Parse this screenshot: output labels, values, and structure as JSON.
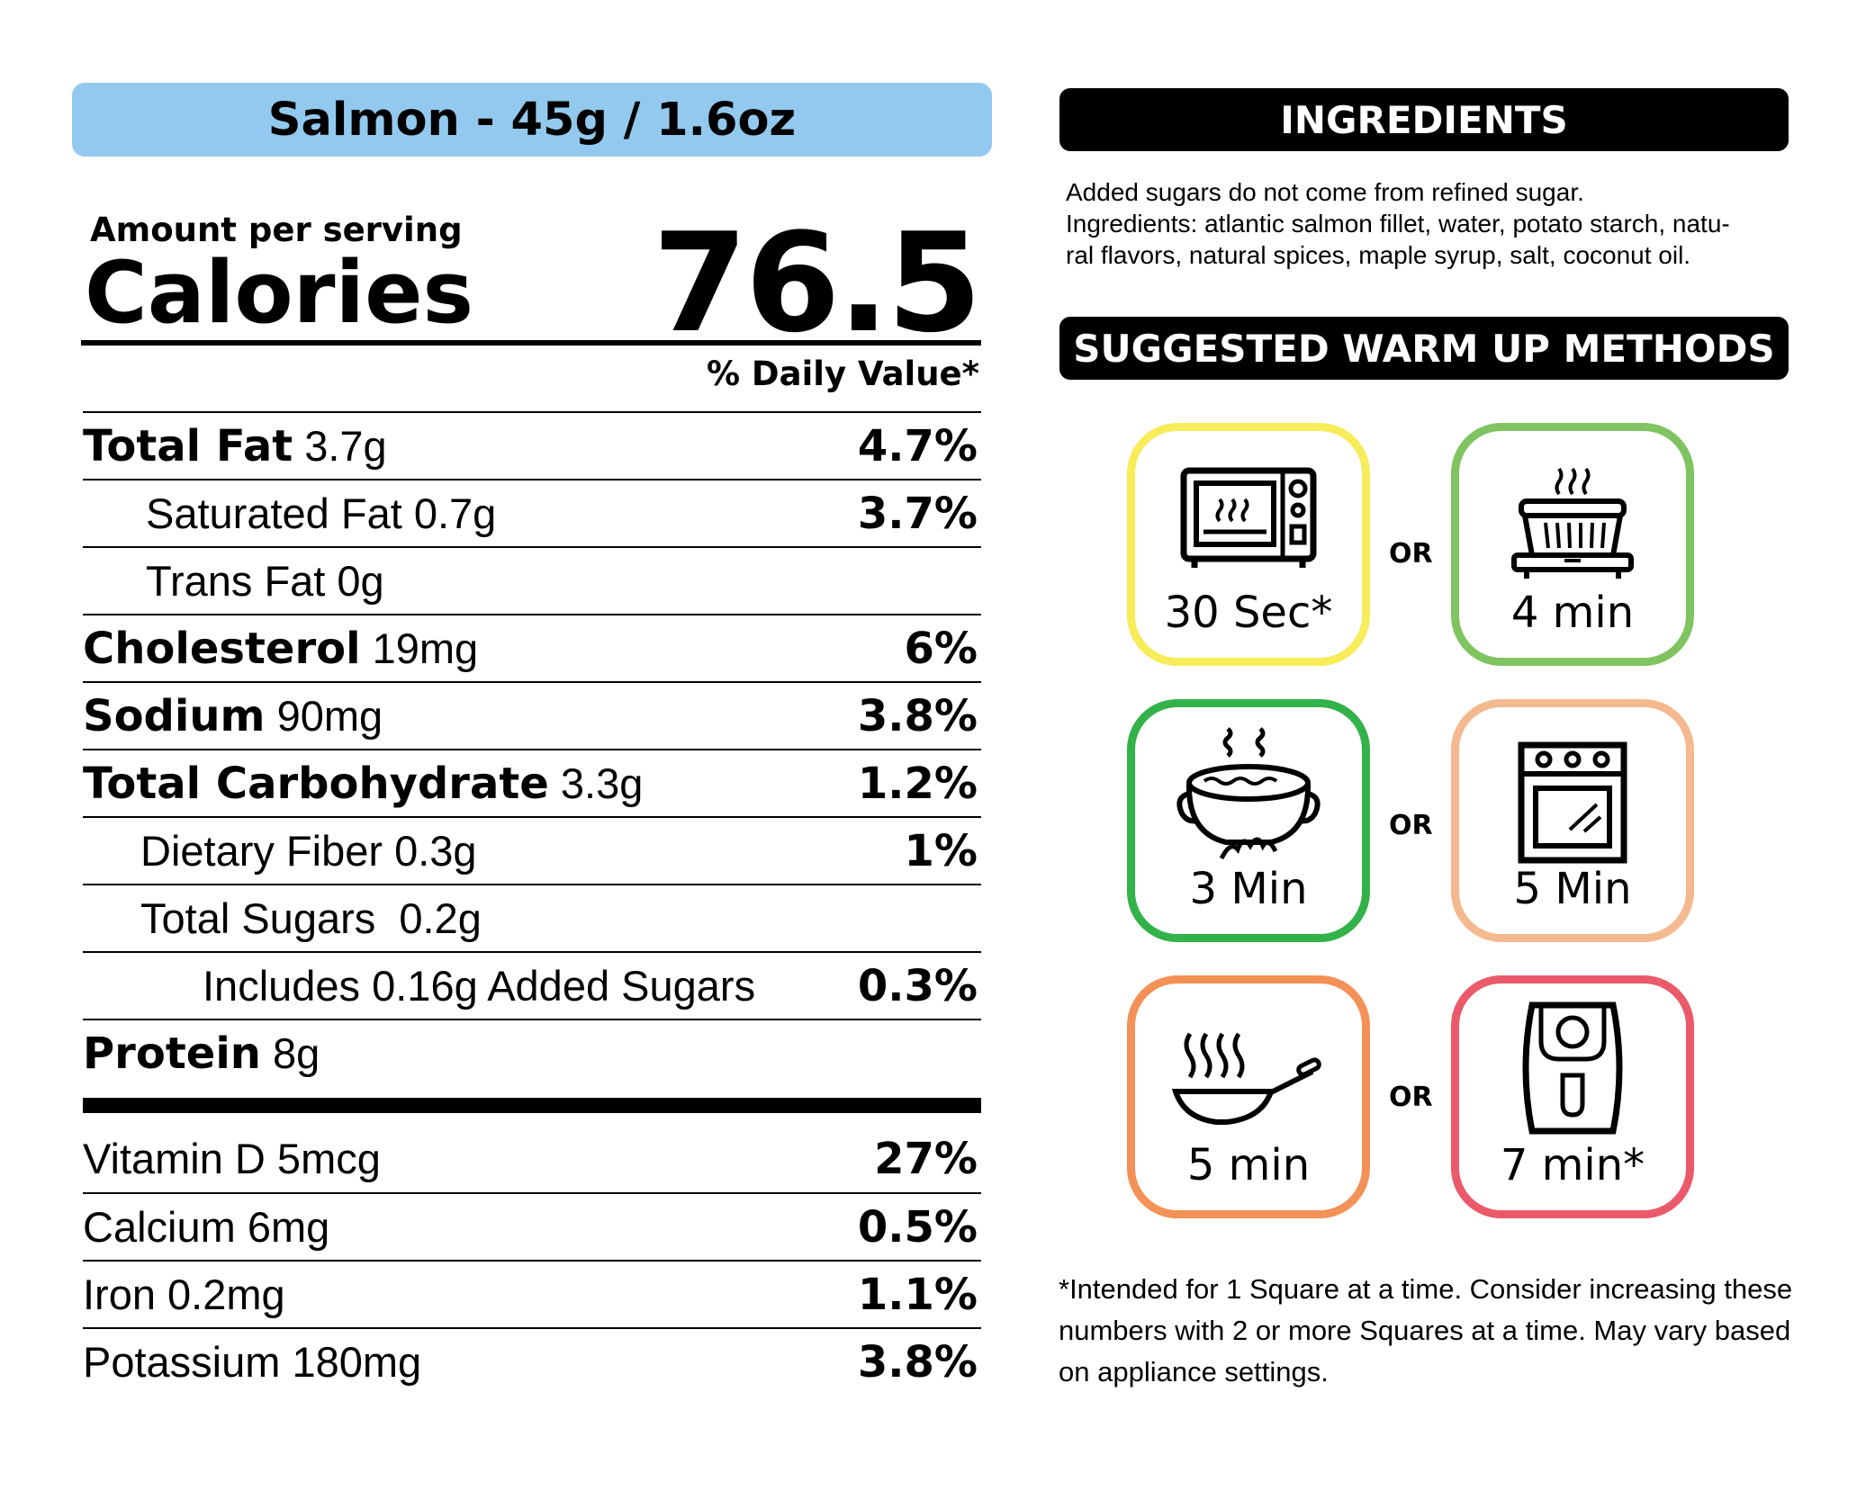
{
  "product": {
    "title": "Salmon - 45g / 1.6oz"
  },
  "calories": {
    "amount_label": "Amount per serving",
    "label": "Calories",
    "value": "76.5"
  },
  "daily_value_header": "% Daily Value*",
  "nutrients": [
    {
      "name": "Total Fat",
      "amount": "3.7g",
      "dv": "4.7%"
    },
    {
      "name": "Saturated Fat 0.7g",
      "amount": "",
      "dv": "3.7%"
    },
    {
      "name": "Trans Fat 0g",
      "amount": "",
      "dv": ""
    },
    {
      "name": "Cholesterol",
      "amount": "19mg",
      "dv": "6%"
    },
    {
      "name": "Sodium",
      "amount": "90mg",
      "dv": "3.8%"
    },
    {
      "name": "Total Carbohydrate",
      "amount": "3.3g",
      "dv": "1.2%"
    },
    {
      "name": "Dietary Fiber 0.3g",
      "amount": "",
      "dv": "1%"
    },
    {
      "name": "Total Sugars  0.2g",
      "amount": "",
      "dv": ""
    },
    {
      "name": "Includes 0.16g Added Sugars",
      "amount": "",
      "dv": "0.3%"
    },
    {
      "name": "Protein",
      "amount": "8g",
      "dv": ""
    }
  ],
  "vitamins": [
    {
      "name": "Vitamin D 5mcg",
      "dv": "27%"
    },
    {
      "name": "Calcium 6mg",
      "dv": "0.5%"
    },
    {
      "name": "Iron 0.2mg",
      "dv": "1.1%"
    },
    {
      "name": "Potassium 180mg",
      "dv": "3.8%"
    }
  ],
  "ingredients": {
    "header": "INGREDIENTS",
    "line1": "Added sugars do not come from refined sugar.",
    "line2": "Ingredients: atlantic salmon fillet, water, potato starch, natu-",
    "line3": "ral flavors, natural spices, maple syrup, salt, coconut oil."
  },
  "warm_up": {
    "header": "SUGGESTED WARM UP METHODS",
    "or_label": "OR",
    "methods": [
      {
        "icon": "microwave-icon",
        "time": "30 Sec*",
        "color": "#f7ec5a"
      },
      {
        "icon": "steamer-icon",
        "time": "4 min",
        "color": "#80c462"
      },
      {
        "icon": "boiling-pot-icon",
        "time": "3 Min",
        "color": "#33b24a"
      },
      {
        "icon": "oven-icon",
        "time": "5 Min",
        "color": "#f5b98f"
      },
      {
        "icon": "frying-pan-icon",
        "time": "5 min",
        "color": "#f39156"
      },
      {
        "icon": "air-fryer-icon",
        "time": "7 min*",
        "color": "#ea5a6a"
      }
    ],
    "footnote": "*Intended for 1 Square at a time. Consider increasing these numbers with 2 or more Squares at a time. May vary based on appliance settings."
  }
}
